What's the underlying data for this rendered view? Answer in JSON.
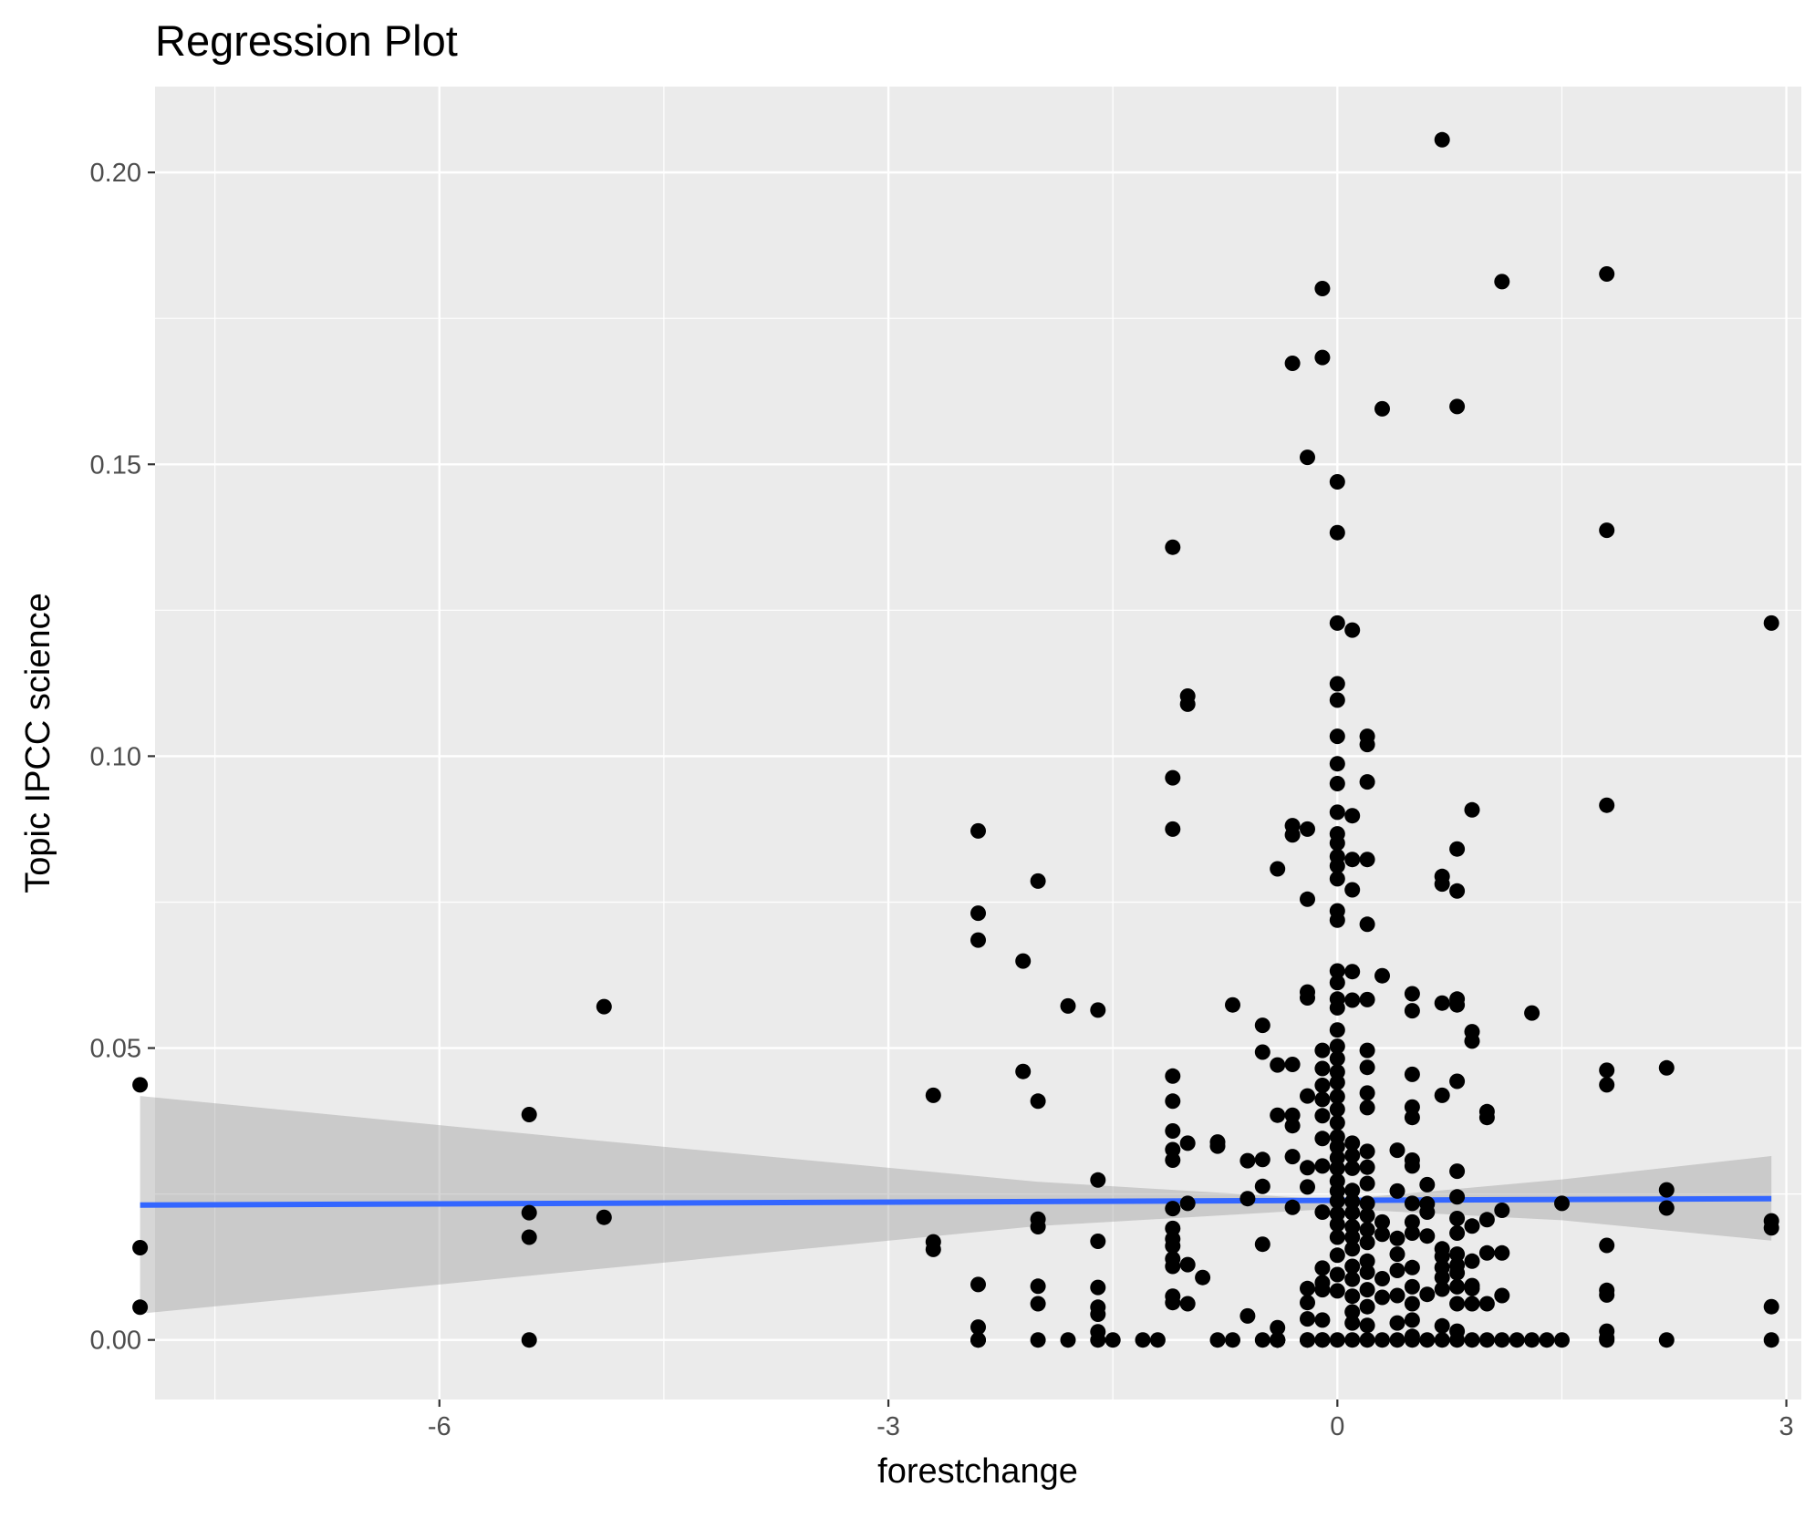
{
  "chart_data": {
    "type": "scatter",
    "title": "Regression Plot",
    "xlabel": "forestchange",
    "ylabel": "Topic IPCC science",
    "xlim": [
      -7.9,
      3.1
    ],
    "ylim": [
      -0.0102,
      0.2147
    ],
    "x_ticks": [
      -6,
      -3,
      0,
      3
    ],
    "x_tick_labels": [
      "-6",
      "-3",
      "0",
      "3"
    ],
    "y_ticks": [
      0.0,
      0.05,
      0.1,
      0.15,
      0.2
    ],
    "y_tick_labels": [
      "0.00",
      "0.05",
      "0.10",
      "0.15",
      "0.20"
    ],
    "grid": true,
    "background": "#ebebeb",
    "grid_color": "#ffffff",
    "point_color": "#000000",
    "fit_color": "#3366ff",
    "band_color": "#999999",
    "fit_line": {
      "x": [
        -8.0,
        2.9
      ],
      "y": [
        0.0231,
        0.0242
      ]
    },
    "confidence_band": {
      "x": [
        -8.0,
        -5.0,
        -2.0,
        0.0,
        1.5,
        2.9
      ],
      "lower": [
        0.0045,
        0.012,
        0.0195,
        0.0225,
        0.0205,
        0.017
      ],
      "upper": [
        0.0418,
        0.0343,
        0.0271,
        0.024,
        0.0275,
        0.0315
      ]
    },
    "series": [
      {
        "x": [
          -8.0,
          -8.0,
          -8.0,
          -5.4,
          -5.4,
          -5.4,
          -5.4,
          -4.9,
          -4.9,
          -2.7,
          -2.7,
          -2.7,
          -2.4,
          -2.4,
          -2.4,
          -2.4,
          -2.4,
          -2.4,
          -2.4,
          -2.1,
          -2.1,
          -2.0,
          -2.0,
          -2.0,
          -2.0,
          -2.0,
          -2.0,
          -2.0,
          -1.8,
          -1.8,
          -1.6,
          -1.6,
          -1.6,
          -1.6,
          -1.6,
          -1.6,
          -1.6,
          -1.6,
          -1.5,
          -1.3,
          -1.2,
          -1.1,
          -1.1,
          -1.1,
          -1.1,
          -1.1,
          -1.1,
          -1.1,
          -1.1,
          -1.1,
          -1.1,
          -1.1,
          -1.1,
          -1.1,
          -1.1,
          -1.1,
          -1.1,
          -1.0,
          -1.0,
          -1.0,
          -1.0,
          -1.0,
          -1.0,
          -0.9,
          -0.8,
          -0.8,
          -0.8,
          -0.7,
          -0.7,
          -0.6,
          -0.6,
          -0.6,
          -0.5,
          -0.5,
          -0.5,
          -0.5,
          -0.5,
          -0.5,
          -0.4,
          -0.4,
          -0.4,
          -0.4,
          -0.4,
          -0.4,
          -0.4,
          -0.4,
          -0.4,
          -0.4,
          -0.4,
          -0.3,
          -0.3,
          -0.3,
          -0.3,
          -0.3,
          -0.3,
          -0.3,
          -0.3,
          -0.2,
          -0.2,
          -0.2,
          -0.2,
          -0.2,
          -0.2,
          -0.2,
          -0.2,
          -0.2,
          -0.2,
          -0.2,
          -0.2,
          -0.2,
          -0.1,
          -0.1,
          -0.1,
          -0.1,
          -0.1,
          -0.1,
          -0.1,
          -0.1,
          -0.1,
          -0.1,
          -0.1,
          -0.1,
          -0.1,
          -0.1,
          -0.1,
          -0.1,
          0.0,
          0.0,
          0.0,
          0.0,
          0.0,
          0.0,
          0.0,
          0.0,
          0.0,
          0.0,
          0.0,
          0.0,
          0.0,
          0.0,
          0.0,
          0.0,
          0.0,
          0.0,
          0.0,
          0.0,
          0.0,
          0.0,
          0.0,
          0.0,
          0.0,
          0.0,
          0.0,
          0.0,
          0.0,
          0.0,
          0.0,
          0.0,
          0.0,
          0.0,
          0.0,
          0.0,
          0.0,
          0.0,
          0.0,
          0.0,
          0.0,
          0.0,
          0.1,
          0.1,
          0.1,
          0.1,
          0.1,
          0.1,
          0.1,
          0.1,
          0.1,
          0.1,
          0.1,
          0.1,
          0.1,
          0.1,
          0.1,
          0.1,
          0.1,
          0.1,
          0.1,
          0.1,
          0.1,
          0.2,
          0.2,
          0.2,
          0.2,
          0.2,
          0.2,
          0.2,
          0.2,
          0.2,
          0.2,
          0.2,
          0.2,
          0.2,
          0.2,
          0.2,
          0.2,
          0.2,
          0.2,
          0.2,
          0.2,
          0.2,
          0.2,
          0.2,
          0.3,
          0.3,
          0.3,
          0.3,
          0.3,
          0.3,
          0.3,
          0.4,
          0.4,
          0.4,
          0.4,
          0.4,
          0.4,
          0.4,
          0.4,
          0.5,
          0.5,
          0.5,
          0.5,
          0.5,
          0.5,
          0.5,
          0.5,
          0.5,
          0.5,
          0.5,
          0.5,
          0.5,
          0.5,
          0.5,
          0.5,
          0.6,
          0.6,
          0.6,
          0.6,
          0.6,
          0.6,
          0.7,
          0.7,
          0.7,
          0.7,
          0.7,
          0.7,
          0.7,
          0.7,
          0.7,
          0.7,
          0.7,
          0.7,
          0.8,
          0.8,
          0.8,
          0.8,
          0.8,
          0.8,
          0.8,
          0.8,
          0.8,
          0.8,
          0.8,
          0.8,
          0.8,
          0.8,
          0.8,
          0.8,
          0.8,
          0.9,
          0.9,
          0.9,
          0.9,
          0.9,
          0.9,
          0.9,
          0.9,
          0.9,
          1.0,
          1.0,
          1.0,
          1.0,
          1.0,
          1.0,
          1.1,
          1.1,
          1.1,
          1.1,
          1.1,
          1.2,
          1.3,
          1.3,
          1.4,
          1.5,
          1.5,
          1.8,
          1.8,
          1.8,
          1.8,
          1.8,
          1.8,
          1.8,
          1.8,
          1.8,
          1.8,
          1.8,
          2.2,
          2.2,
          2.2,
          2.2,
          2.9,
          2.9,
          2.9,
          2.9,
          2.9
        ],
        "y": [
          0.0437,
          0.0158,
          0.0056,
          0.0386,
          0.0218,
          0.0176,
          0.0,
          0.0571,
          0.021,
          0.0419,
          0.0168,
          0.0155,
          0.0872,
          0.0731,
          0.0685,
          0.0095,
          0.0022,
          0.0,
          0.0,
          0.0649,
          0.046,
          0.0786,
          0.0409,
          0.0207,
          0.0194,
          0.0092,
          0.0062,
          0.0,
          0.0572,
          0.0,
          0.0565,
          0.0274,
          0.0169,
          0.009,
          0.0056,
          0.0044,
          0.0014,
          0.0,
          0.0,
          0.0,
          0.0,
          0.1358,
          0.0963,
          0.0875,
          0.0452,
          0.0409,
          0.0358,
          0.0326,
          0.0308,
          0.0225,
          0.0191,
          0.0173,
          0.0161,
          0.0139,
          0.0126,
          0.0075,
          0.0064,
          0.1103,
          0.1089,
          0.0337,
          0.0234,
          0.0129,
          0.0062,
          0.0107,
          0.0,
          0.0339,
          0.0332,
          0.0574,
          0.0,
          0.0307,
          0.0242,
          0.0041,
          0.0539,
          0.0493,
          0.0309,
          0.0263,
          0.0164,
          0.0,
          0.0807,
          0.0471,
          0.0385,
          0.0021,
          0.0,
          0.0,
          0.0,
          0.0,
          0.0,
          0.0,
          0.0,
          0.1673,
          0.0881,
          0.0865,
          0.0472,
          0.0385,
          0.0367,
          0.0314,
          0.0227,
          0.1512,
          0.0875,
          0.0755,
          0.0596,
          0.0586,
          0.0418,
          0.0295,
          0.0262,
          0.0088,
          0.0064,
          0.0036,
          0.0,
          0.0,
          0.1801,
          0.1683,
          0.0496,
          0.0465,
          0.0436,
          0.0412,
          0.0384,
          0.0345,
          0.0298,
          0.0219,
          0.0123,
          0.0098,
          0.0086,
          0.0034,
          0.0,
          0.0,
          0.147,
          0.1383,
          0.1228,
          0.1124,
          0.1096,
          0.1034,
          0.0987,
          0.0953,
          0.0904,
          0.0867,
          0.0851,
          0.0828,
          0.0812,
          0.079,
          0.0735,
          0.0719,
          0.0632,
          0.0612,
          0.0584,
          0.0569,
          0.0531,
          0.0503,
          0.0482,
          0.0459,
          0.0441,
          0.0417,
          0.0395,
          0.0372,
          0.0348,
          0.0331,
          0.0312,
          0.0294,
          0.0272,
          0.0255,
          0.0238,
          0.0216,
          0.0198,
          0.0176,
          0.0145,
          0.0112,
          0.0084,
          0.0,
          0.1216,
          0.0898,
          0.0823,
          0.0771,
          0.0631,
          0.0582,
          0.0337,
          0.0316,
          0.0294,
          0.0256,
          0.0237,
          0.0218,
          0.0194,
          0.0176,
          0.0156,
          0.0126,
          0.0104,
          0.0075,
          0.0048,
          0.0029,
          0.0,
          0.1034,
          0.102,
          0.0956,
          0.0823,
          0.0712,
          0.0583,
          0.0496,
          0.0467,
          0.0423,
          0.0398,
          0.0323,
          0.0296,
          0.0268,
          0.0234,
          0.0213,
          0.0189,
          0.0167,
          0.0135,
          0.0116,
          0.0086,
          0.0057,
          0.0025,
          0.0,
          0.1595,
          0.0624,
          0.0202,
          0.0181,
          0.0105,
          0.0073,
          0.0,
          0.0325,
          0.0255,
          0.0174,
          0.0147,
          0.0119,
          0.0076,
          0.0029,
          0.0,
          0.0593,
          0.0564,
          0.0455,
          0.0399,
          0.0381,
          0.0308,
          0.0298,
          0.0234,
          0.0202,
          0.0183,
          0.0124,
          0.0091,
          0.0062,
          0.0034,
          0.0006,
          0.0,
          0.0266,
          0.0233,
          0.0219,
          0.0178,
          0.0078,
          0.0,
          0.2056,
          0.0794,
          0.0781,
          0.0577,
          0.0419,
          0.0156,
          0.0143,
          0.0124,
          0.0107,
          0.0087,
          0.0024,
          0.0,
          0.1599,
          0.0841,
          0.0769,
          0.0584,
          0.0574,
          0.0443,
          0.0289,
          0.0245,
          0.0208,
          0.0183,
          0.0147,
          0.0128,
          0.0115,
          0.0091,
          0.0062,
          0.0015,
          0.0,
          0.0908,
          0.0528,
          0.0512,
          0.0195,
          0.0135,
          0.0093,
          0.0088,
          0.0062,
          0.0,
          0.0391,
          0.0381,
          0.0206,
          0.0149,
          0.0062,
          0.0,
          0.1813,
          0.0222,
          0.0149,
          0.0076,
          0.0,
          0.0,
          0.056,
          0.0,
          0.0,
          0.0234,
          0.0,
          0.1826,
          0.1387,
          0.0916,
          0.0462,
          0.0437,
          0.0162,
          0.0085,
          0.0077,
          0.0015,
          0.0003,
          0.0,
          0.0466,
          0.0257,
          0.0226,
          0.0,
          0.1228,
          0.0204,
          0.0192,
          0.0057,
          0.0
        ]
      }
    ]
  }
}
